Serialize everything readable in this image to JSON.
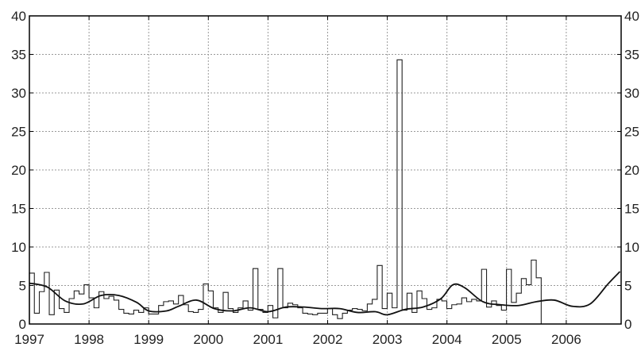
{
  "chart_data": {
    "type": "line",
    "title": "",
    "xlabel": "",
    "ylabel": "",
    "grid": true,
    "xlim": [
      1997,
      2006.92
    ],
    "ylim": [
      0,
      40
    ],
    "x_ticks": [
      1997,
      1998,
      1999,
      2000,
      2001,
      2002,
      2003,
      2004,
      2005,
      2006
    ],
    "x_tick_labels": [
      "1997",
      "1998",
      "1999",
      "2000",
      "2001",
      "2002",
      "2003",
      "2004",
      "2005",
      "2006"
    ],
    "y_ticks": [
      0,
      5,
      10,
      15,
      20,
      25,
      30,
      35,
      40
    ],
    "y_tick_labels": [
      "0",
      "5",
      "10",
      "15",
      "20",
      "25",
      "30",
      "35",
      "40"
    ],
    "step_interval_years": 0.0833,
    "step_start": 1997,
    "series": [
      {
        "style": "step",
        "color": "#222222",
        "values": [
          6.6,
          1.4,
          4.2,
          6.7,
          1.2,
          4.4,
          2.0,
          1.5,
          3.3,
          4.3,
          3.9,
          5.1,
          3.4,
          2.1,
          4.2,
          3.3,
          3.6,
          3.1,
          1.9,
          1.4,
          1.3,
          1.8,
          1.5,
          2.1,
          1.3,
          1.3,
          2.4,
          2.9,
          3.0,
          2.6,
          3.7,
          2.5,
          1.6,
          1.5,
          1.9,
          5.2,
          4.3,
          2.1,
          1.5,
          4.1,
          2.0,
          1.5,
          2.1,
          3.0,
          1.8,
          7.2,
          1.9,
          1.5,
          2.4,
          0.8,
          7.2,
          2.1,
          2.7,
          2.5,
          2.1,
          1.4,
          1.3,
          1.2,
          1.4,
          1.4,
          2.0,
          1.2,
          0.7,
          1.4,
          1.8,
          2.0,
          1.9,
          1.7,
          2.6,
          3.2,
          7.6,
          2.0,
          4.0,
          2.1,
          34.3,
          1.8,
          4.0,
          1.5,
          4.3,
          3.3,
          1.9,
          2.1,
          3.2,
          3.0,
          2.0,
          2.5,
          2.6,
          3.4,
          2.9,
          3.2,
          3.0,
          7.1,
          2.2,
          3.0,
          2.4,
          1.8,
          7.1,
          2.8,
          4.0,
          5.9,
          5.1,
          8.3,
          6.0
        ]
      },
      {
        "style": "smooth",
        "color": "#111111",
        "x": [
          1997.0,
          1997.3,
          1997.6,
          1997.9,
          1998.2,
          1998.5,
          1998.8,
          1999.0,
          1999.3,
          1999.5,
          1999.8,
          2000.1,
          2000.4,
          2000.7,
          2001.0,
          2001.3,
          2001.6,
          2001.9,
          2002.2,
          2002.5,
          2002.8,
          2003.0,
          2003.3,
          2003.6,
          2003.9,
          2004.1,
          2004.3,
          2004.6,
          2004.9,
          2005.2,
          2005.5,
          2005.8,
          2006.1,
          2006.4,
          2006.7,
          2006.9
        ],
        "y": [
          5.3,
          4.8,
          3.0,
          2.6,
          3.7,
          3.7,
          2.8,
          1.7,
          1.7,
          2.3,
          3.1,
          2.0,
          1.7,
          2.1,
          1.6,
          2.2,
          2.2,
          2.0,
          2.0,
          1.5,
          1.6,
          1.2,
          1.9,
          2.2,
          3.3,
          5.1,
          4.7,
          2.9,
          2.5,
          2.4,
          2.9,
          3.1,
          2.3,
          2.6,
          5.2,
          6.8
        ]
      }
    ]
  }
}
